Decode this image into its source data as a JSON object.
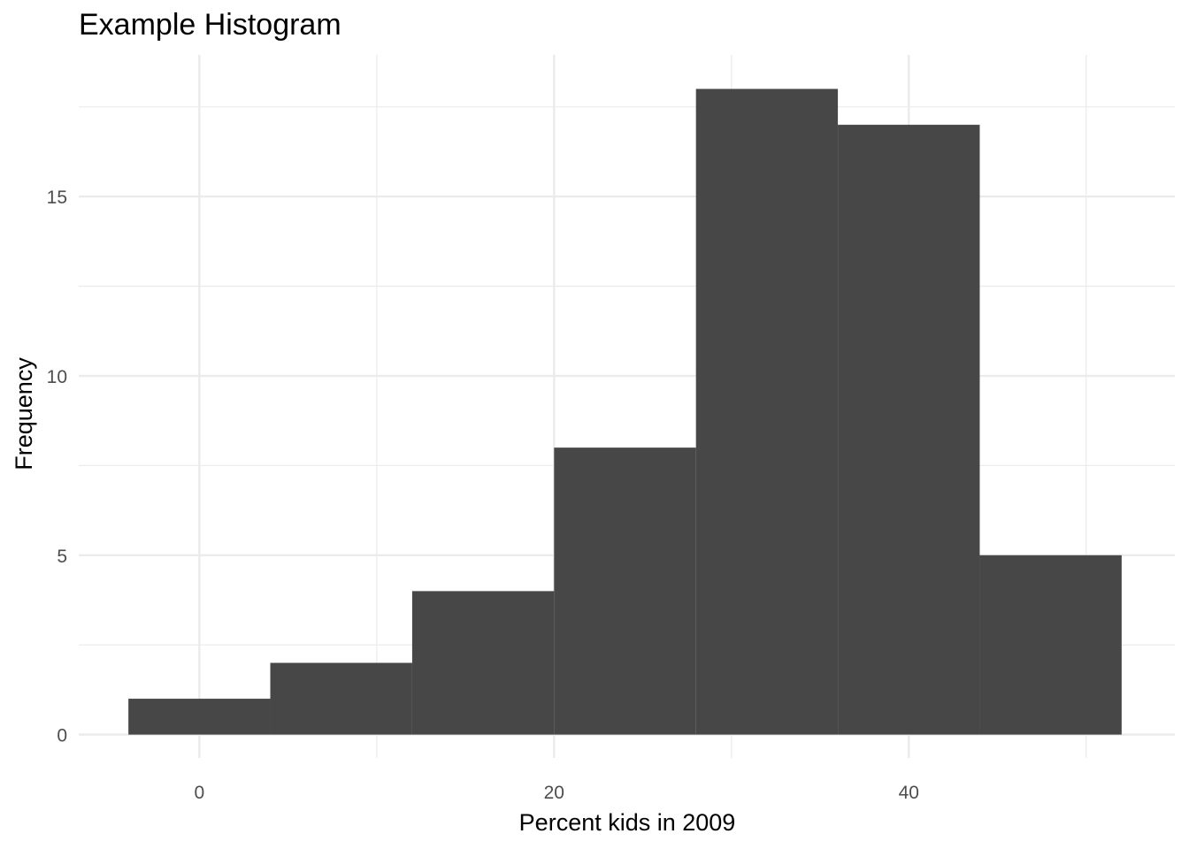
{
  "chart_data": {
    "type": "bar",
    "title": "Example Histogram",
    "xlabel": "Percent kids in 2009",
    "ylabel": "Frequency",
    "xlim": [
      -6.8,
      55
    ],
    "ylim": [
      -0.65,
      18.95
    ],
    "x_ticks": [
      0,
      20,
      40
    ],
    "x_minor_ticks": [
      10,
      30,
      50
    ],
    "y_ticks": [
      0,
      5,
      10,
      15
    ],
    "y_minor_ticks": [
      2.5,
      7.5,
      12.5,
      17.5
    ],
    "grid": true,
    "bar_color": "#474747",
    "grid_color": "#ebebeb",
    "bins": [
      {
        "x0": -4,
        "x1": 4,
        "count": 1
      },
      {
        "x0": 4,
        "x1": 12,
        "count": 2
      },
      {
        "x0": 12,
        "x1": 20,
        "count": 4
      },
      {
        "x0": 20,
        "x1": 28,
        "count": 8
      },
      {
        "x0": 28,
        "x1": 36,
        "count": 18
      },
      {
        "x0": 36,
        "x1": 44,
        "count": 17
      },
      {
        "x0": 44,
        "x1": 52,
        "count": 5
      }
    ]
  }
}
